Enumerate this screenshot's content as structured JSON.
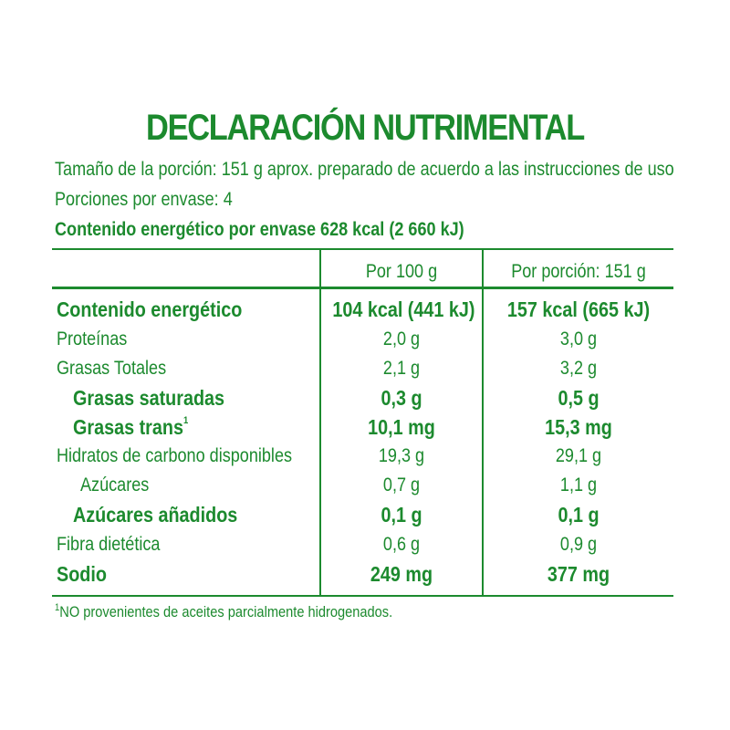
{
  "label": {
    "title": "DECLARACIÓN NUTRIMENTAL",
    "serving_size": "Tamaño de la porción: 151 g aprox. preparado de acuerdo a las instrucciones de uso",
    "servings": "Porciones por envase: 4",
    "energy_per_package": "Contenido energético por envase 628 kcal (2 660 kJ)",
    "columns": {
      "per_100": "Por 100 g",
      "per_serving": "Por porción: 151 g"
    },
    "rows": [
      {
        "name": "Contenido energético",
        "per_100": "104 kcal (441 kJ)",
        "per_serving": "157 kcal (665 kJ)"
      },
      {
        "name": "Proteínas",
        "per_100": "2,0 g",
        "per_serving": "3,0 g"
      },
      {
        "name": "Grasas Totales",
        "per_100": "2,1 g",
        "per_serving": "3,2 g"
      },
      {
        "name": "Grasas saturadas",
        "per_100": "0,3 g",
        "per_serving": "0,5 g"
      },
      {
        "name": "Grasas trans",
        "sup": "1",
        "per_100": "10,1 mg",
        "per_serving": "15,3 mg"
      },
      {
        "name": "Hidratos de carbono disponibles",
        "per_100": "19,3 g",
        "per_serving": "29,1 g"
      },
      {
        "name": "Azúcares",
        "per_100": "0,7 g",
        "per_serving": "1,1 g"
      },
      {
        "name": "Azúcares añadidos",
        "per_100": "0,1 g",
        "per_serving": "0,1 g"
      },
      {
        "name": "Fibra dietética",
        "per_100": "0,6 g",
        "per_serving": "0,9 g"
      },
      {
        "name": "Sodio",
        "per_100": "249 mg",
        "per_serving": "377 mg"
      }
    ],
    "footnote_mark": "1",
    "footnote": "NO provenientes de aceites parcialmente hidrogenados."
  },
  "colors": {
    "text": "#1c8a2e"
  }
}
